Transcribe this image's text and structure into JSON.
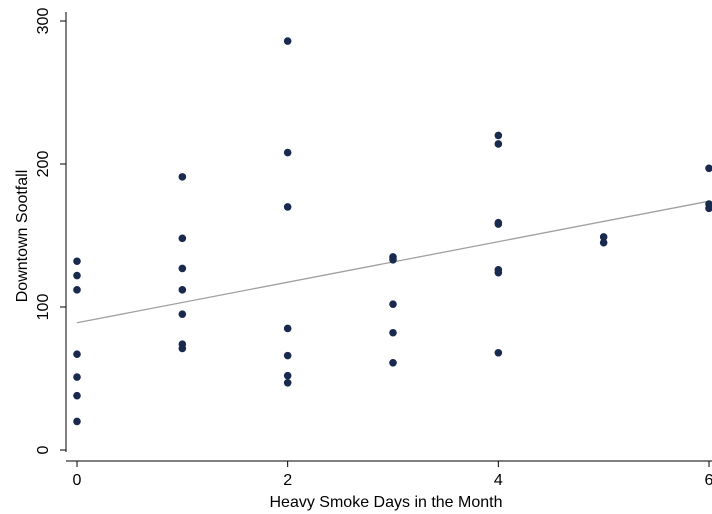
{
  "chart_data": {
    "type": "scatter",
    "xlabel": "Heavy Smoke Days in the Month",
    "ylabel": "Downtown Sootfall",
    "xlim": [
      0,
      6
    ],
    "ylim": [
      0,
      300
    ],
    "x_ticks": [
      0,
      2,
      4,
      6
    ],
    "y_ticks": [
      0,
      100,
      200,
      300
    ],
    "x_tick_labels": [
      "0",
      "2",
      "4",
      "6"
    ],
    "y_tick_labels": [
      "0",
      "100",
      "200",
      "300"
    ],
    "grid": false,
    "legend": "none",
    "point_color": "#1a2a4f",
    "fit_line_color": "#a0a0a0",
    "points": [
      {
        "x": 0,
        "y": 132
      },
      {
        "x": 0,
        "y": 122
      },
      {
        "x": 0,
        "y": 112
      },
      {
        "x": 0,
        "y": 67
      },
      {
        "x": 0,
        "y": 51
      },
      {
        "x": 0,
        "y": 38
      },
      {
        "x": 0,
        "y": 20
      },
      {
        "x": 1,
        "y": 191
      },
      {
        "x": 1,
        "y": 148
      },
      {
        "x": 1,
        "y": 127
      },
      {
        "x": 1,
        "y": 112
      },
      {
        "x": 1,
        "y": 95
      },
      {
        "x": 1,
        "y": 74
      },
      {
        "x": 1,
        "y": 71
      },
      {
        "x": 2,
        "y": 286
      },
      {
        "x": 2,
        "y": 208
      },
      {
        "x": 2,
        "y": 170
      },
      {
        "x": 2,
        "y": 85
      },
      {
        "x": 2,
        "y": 66
      },
      {
        "x": 2,
        "y": 52
      },
      {
        "x": 2,
        "y": 47
      },
      {
        "x": 3,
        "y": 135
      },
      {
        "x": 3,
        "y": 133
      },
      {
        "x": 3,
        "y": 102
      },
      {
        "x": 3,
        "y": 82
      },
      {
        "x": 3,
        "y": 61
      },
      {
        "x": 4,
        "y": 220
      },
      {
        "x": 4,
        "y": 214
      },
      {
        "x": 4,
        "y": 159
      },
      {
        "x": 4,
        "y": 158
      },
      {
        "x": 4,
        "y": 126
      },
      {
        "x": 4,
        "y": 124
      },
      {
        "x": 4,
        "y": 68
      },
      {
        "x": 5,
        "y": 149
      },
      {
        "x": 5,
        "y": 145
      },
      {
        "x": 6,
        "y": 197
      },
      {
        "x": 6,
        "y": 172
      },
      {
        "x": 6,
        "y": 169
      }
    ],
    "fit_line": {
      "x": [
        0,
        6
      ],
      "y": [
        89,
        174
      ]
    }
  }
}
